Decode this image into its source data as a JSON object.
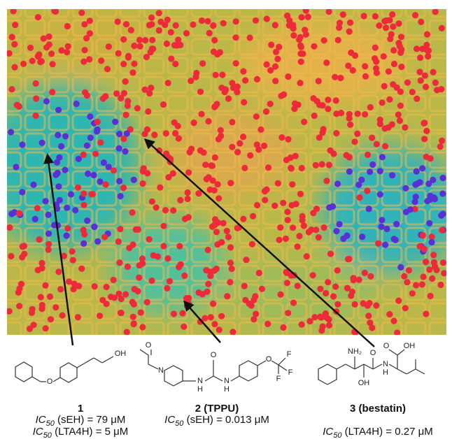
{
  "compounds": [
    {
      "label": "1",
      "atoms": [
        "O",
        "OH"
      ],
      "activities": [
        {
          "measure": "IC",
          "subscript": "50",
          "detail": " (sEH) = 79 μM"
        },
        {
          "measure": "IC",
          "subscript": "50",
          "detail": " (LTA4H) = 5 μM"
        }
      ]
    },
    {
      "label": "2 (TPPU)",
      "atoms": [
        "O",
        "N",
        "N",
        "H",
        "O",
        "N",
        "H",
        "O",
        "F",
        "F",
        "F"
      ],
      "activities": [
        {
          "measure": "IC",
          "subscript": "50",
          "detail": " (sEH) = 0.013 μM"
        }
      ]
    },
    {
      "label": "3 (bestatin)",
      "atoms": [
        "NH₂",
        "OH",
        "O",
        "N",
        "H",
        "O",
        "OH"
      ],
      "activities": [
        {
          "measure": "IC",
          "subscript": "50",
          "detail": " (LTA4H) = 0.27 μM"
        }
      ]
    }
  ]
}
